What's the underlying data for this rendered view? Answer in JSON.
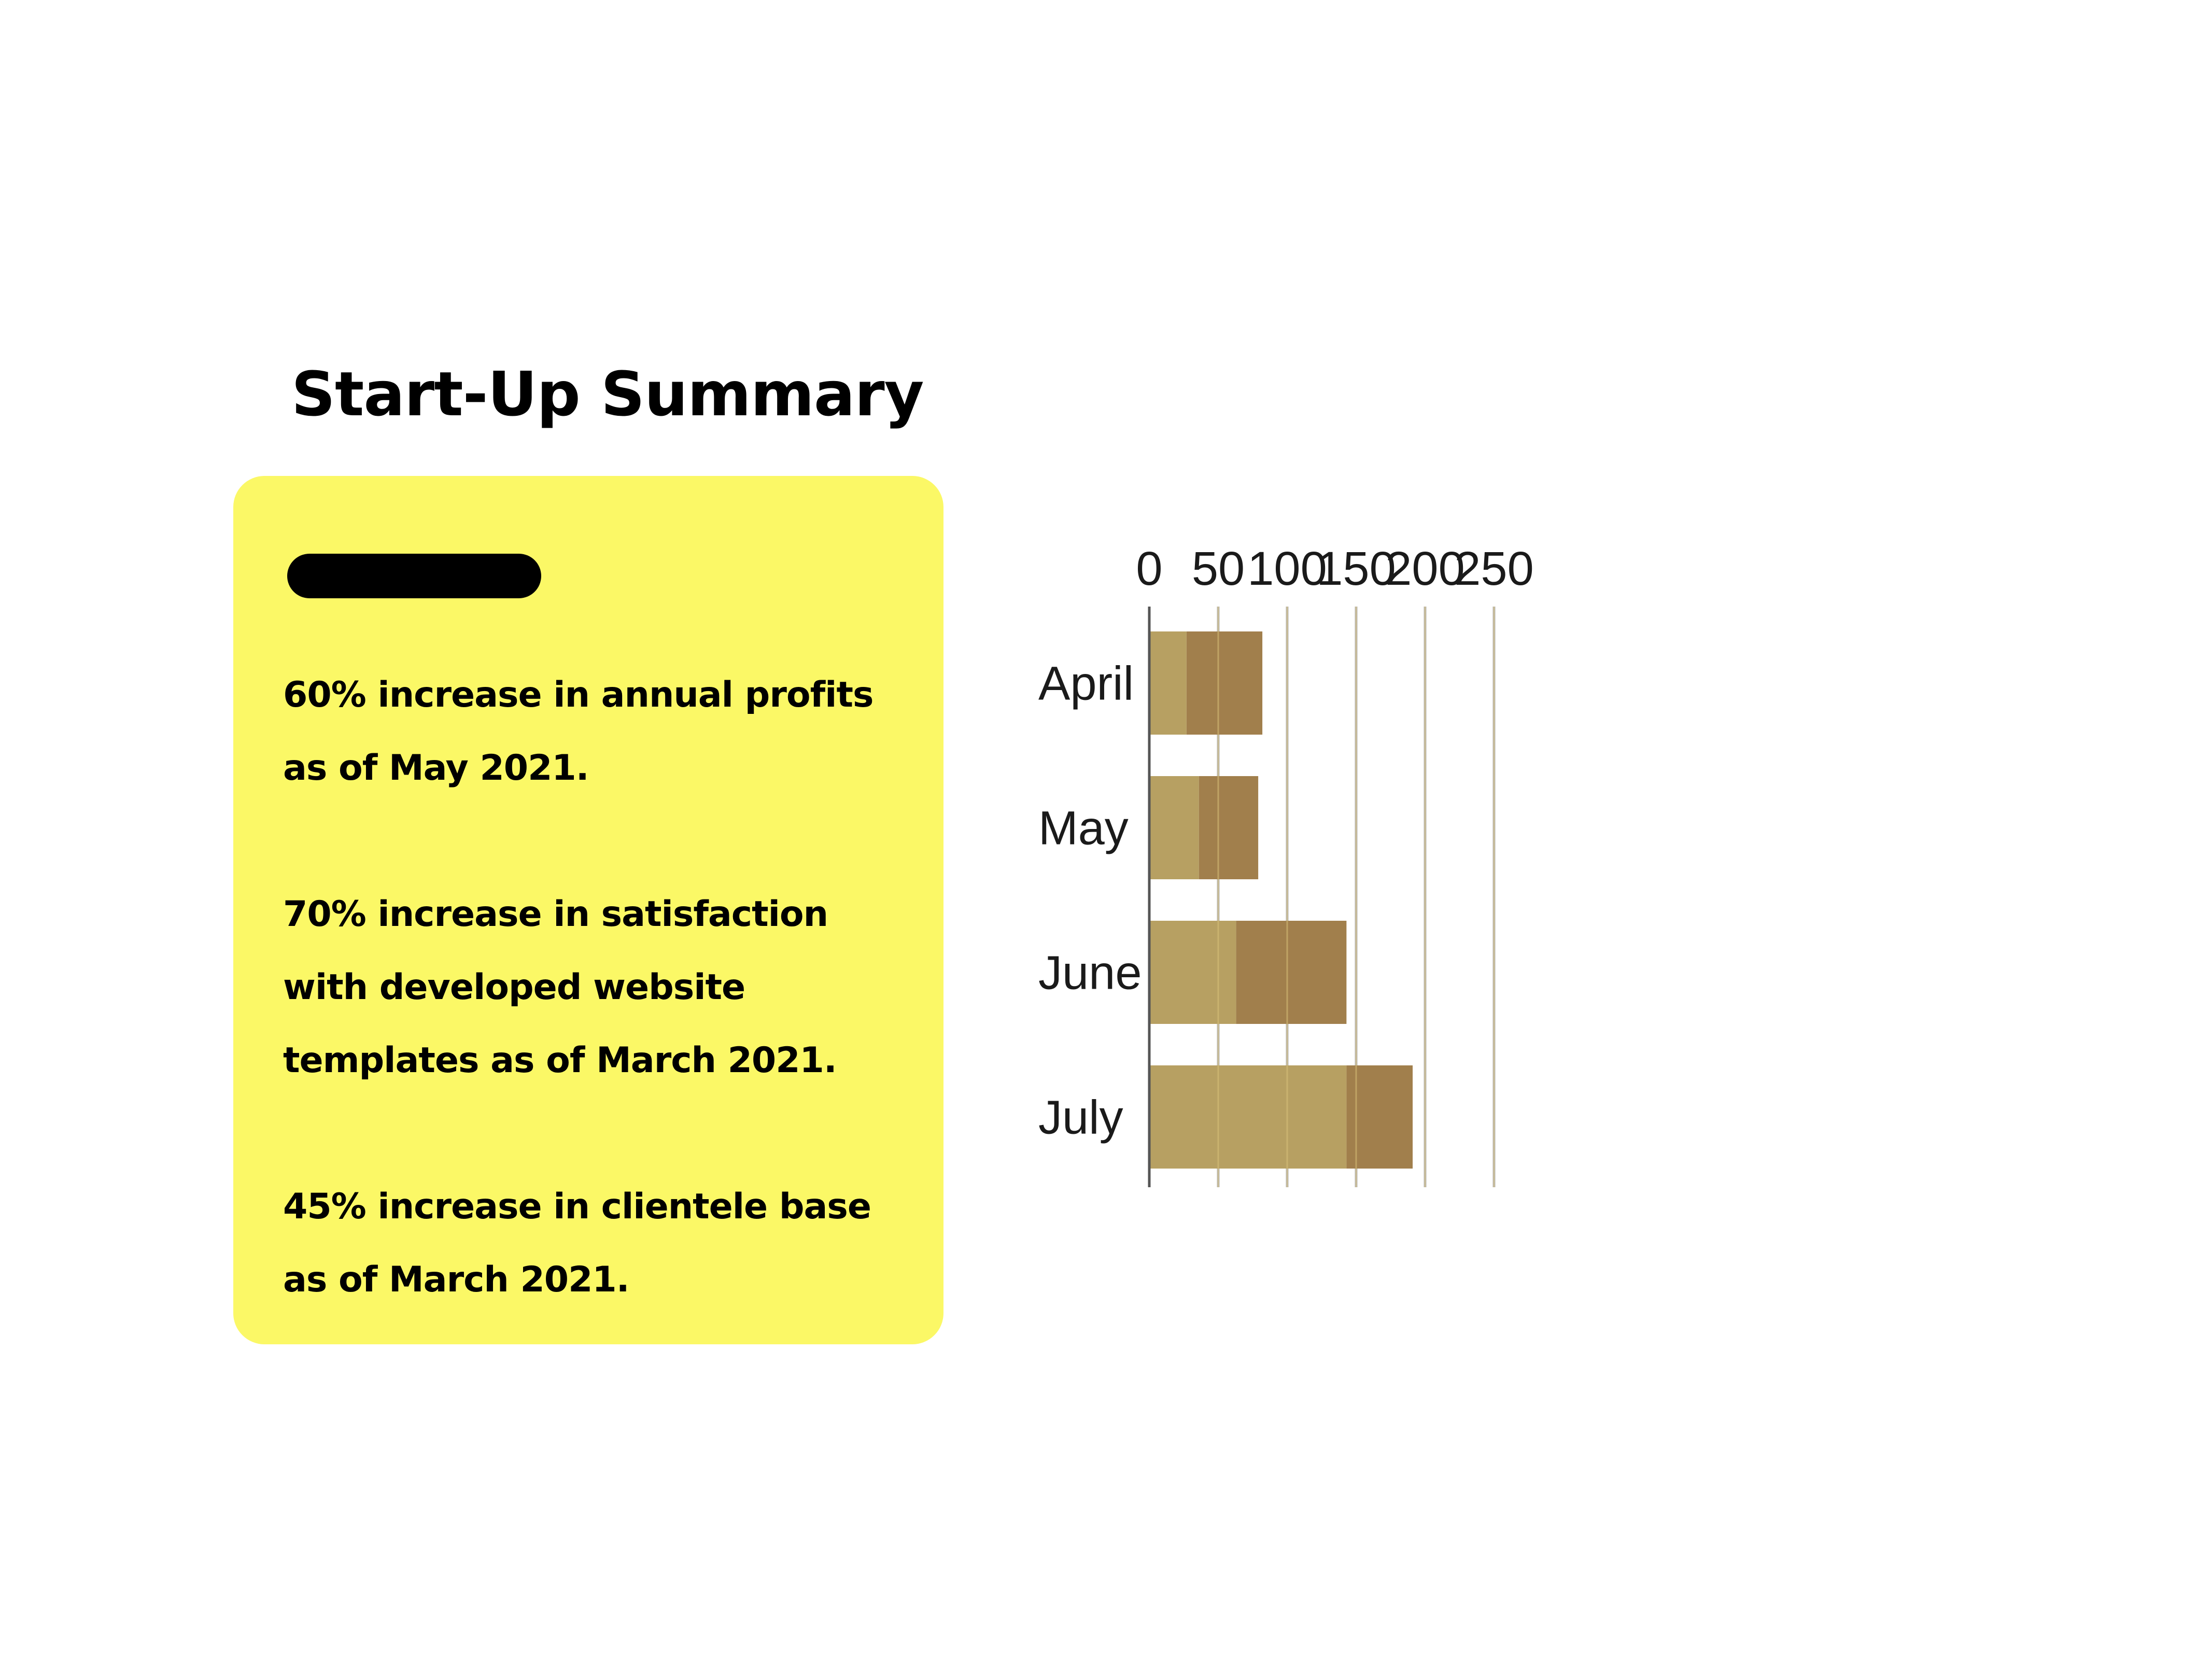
{
  "title": "Start-Up Summary",
  "card": {
    "stats": [
      {
        "lines": [
          "60% increase in annual profits",
          "as of May 2021."
        ]
      },
      {
        "lines": [
          "70% increase in satisfaction",
          "with developed website",
          "templates as of March 2021."
        ]
      },
      {
        "lines": [
          "45% increase in clientele base",
          "as of March 2021."
        ]
      }
    ]
  },
  "colors": {
    "card_background": "#fbf866",
    "series_1": "#b7a062",
    "series_2": "#a17f4c",
    "grid": "#b5b5b5"
  },
  "chart_data": {
    "type": "bar",
    "orientation": "horizontal",
    "stacked": true,
    "categories": [
      "April",
      "May",
      "June",
      "July"
    ],
    "series": [
      {
        "values": [
          27,
          36,
          63,
          143
        ]
      },
      {
        "values": [
          55,
          43,
          80,
          48
        ]
      }
    ],
    "xlim": [
      0,
      250
    ],
    "xticks": [
      "0",
      "50",
      "100",
      "150",
      "200",
      "250"
    ],
    "xaxis_position": "top",
    "grid": true,
    "legend": "none"
  }
}
